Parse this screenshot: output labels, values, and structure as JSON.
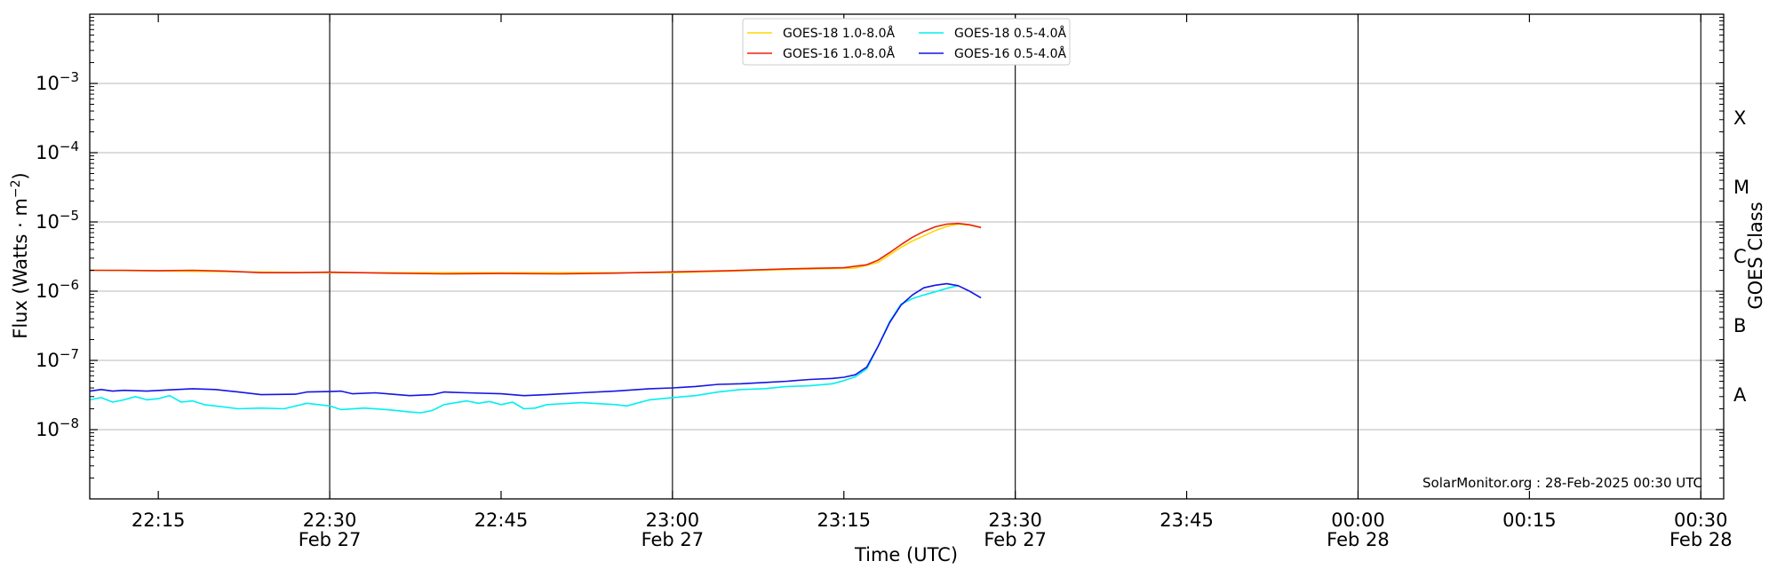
{
  "chart_data": {
    "type": "line",
    "xlabel": "Time (UTC)",
    "ylabel": "Flux (Watts · m",
    "ylabel_sup": "−2",
    "ylabel_close": ")",
    "right_label": "GOES Class",
    "credit": "SolarMonitor.org : 28-Feb-2025 00:30 UTC",
    "xlim": [
      "2025-02-27 22:09",
      "2025-02-28 00:32"
    ],
    "ylim": [
      1e-09,
      0.01
    ],
    "y_scale": "log",
    "grid": "horizontal",
    "legend_position": "top-center",
    "y_ticks": [
      {
        "value": 1e-08,
        "base": "10",
        "exp": "−8"
      },
      {
        "value": 1e-07,
        "base": "10",
        "exp": "−7"
      },
      {
        "value": 1e-06,
        "base": "10",
        "exp": "−6"
      },
      {
        "value": 1e-05,
        "base": "10",
        "exp": "−5"
      },
      {
        "value": 0.0001,
        "base": "10",
        "exp": "−4"
      },
      {
        "value": 0.001,
        "base": "10",
        "exp": "−3"
      }
    ],
    "x_ticks": [
      {
        "time": "2025-02-27 22:15",
        "label": "22:15",
        "date": ""
      },
      {
        "time": "2025-02-27 22:30",
        "label": "22:30",
        "date": "Feb 27"
      },
      {
        "time": "2025-02-27 22:45",
        "label": "22:45",
        "date": ""
      },
      {
        "time": "2025-02-27 23:00",
        "label": "23:00",
        "date": "Feb 27"
      },
      {
        "time": "2025-02-27 23:15",
        "label": "23:15",
        "date": ""
      },
      {
        "time": "2025-02-27 23:30",
        "label": "23:30",
        "date": "Feb 27"
      },
      {
        "time": "2025-02-27 23:45",
        "label": "23:45",
        "date": ""
      },
      {
        "time": "2025-02-28 00:00",
        "label": "00:00",
        "date": "Feb 28"
      },
      {
        "time": "2025-02-28 00:15",
        "label": "00:15",
        "date": ""
      },
      {
        "time": "2025-02-28 00:30",
        "label": "00:30",
        "date": "Feb 28"
      }
    ],
    "vertical_lines": [
      "2025-02-27 22:30",
      "2025-02-27 23:00",
      "2025-02-27 23:30",
      "2025-02-28 00:00",
      "2025-02-28 00:30"
    ],
    "goes_classes": [
      {
        "label": "A",
        "value": 3.16e-08
      },
      {
        "label": "B",
        "value": 3.16e-07
      },
      {
        "label": "C",
        "value": 3.16e-06
      },
      {
        "label": "M",
        "value": 3.16e-05
      },
      {
        "label": "X",
        "value": 0.000316
      }
    ],
    "series": [
      {
        "name": "GOES-18 1.0-8.0Å",
        "color": "#ffd700",
        "points": [
          [
            "2025-02-27 22:09",
            2e-06
          ],
          [
            "2025-02-27 22:30",
            1.85e-06
          ],
          [
            "2025-02-27 23:00",
            1.85e-06
          ],
          [
            "2025-02-27 23:10",
            2.05e-06
          ],
          [
            "2025-02-27 23:16",
            2.15e-06
          ],
          [
            "2025-02-27 23:18",
            2.6e-06
          ],
          [
            "2025-02-27 23:20",
            4.3e-06
          ],
          [
            "2025-02-27 23:21",
            5.3e-06
          ],
          [
            "2025-02-27 23:22",
            6.3e-06
          ],
          [
            "2025-02-27 23:23",
            7.5e-06
          ],
          [
            "2025-02-27 23:24",
            8.6e-06
          ],
          [
            "2025-02-27 23:25",
            9.3e-06
          ],
          [
            "2025-02-27 23:26",
            9e-06
          ],
          [
            "2025-02-27 23:27",
            8.3e-06
          ]
        ]
      },
      {
        "name": "GOES-16 1.0-8.0Å",
        "color": "#e8220e",
        "points": [
          [
            "2025-02-27 22:09",
            2e-06
          ],
          [
            "2025-02-27 22:12",
            2e-06
          ],
          [
            "2025-02-27 22:15",
            1.98e-06
          ],
          [
            "2025-02-27 22:18",
            2e-06
          ],
          [
            "2025-02-27 22:21",
            1.95e-06
          ],
          [
            "2025-02-27 22:24",
            1.85e-06
          ],
          [
            "2025-02-27 22:27",
            1.85e-06
          ],
          [
            "2025-02-27 22:30",
            1.88e-06
          ],
          [
            "2025-02-27 22:35",
            1.82e-06
          ],
          [
            "2025-02-27 22:40",
            1.78e-06
          ],
          [
            "2025-02-27 22:45",
            1.8e-06
          ],
          [
            "2025-02-27 22:50",
            1.78e-06
          ],
          [
            "2025-02-27 22:55",
            1.82e-06
          ],
          [
            "2025-02-27 23:00",
            1.9e-06
          ],
          [
            "2025-02-27 23:05",
            1.98e-06
          ],
          [
            "2025-02-27 23:10",
            2.1e-06
          ],
          [
            "2025-02-27 23:15",
            2.18e-06
          ],
          [
            "2025-02-27 23:17",
            2.4e-06
          ],
          [
            "2025-02-27 23:18",
            2.8e-06
          ],
          [
            "2025-02-27 23:19",
            3.6e-06
          ],
          [
            "2025-02-27 23:20",
            4.7e-06
          ],
          [
            "2025-02-27 23:21",
            6e-06
          ],
          [
            "2025-02-27 23:22",
            7.3e-06
          ],
          [
            "2025-02-27 23:23",
            8.5e-06
          ],
          [
            "2025-02-27 23:24",
            9.3e-06
          ],
          [
            "2025-02-27 23:25",
            9.5e-06
          ],
          [
            "2025-02-27 23:26",
            9.1e-06
          ],
          [
            "2025-02-27 23:27",
            8.3e-06
          ]
        ]
      },
      {
        "name": "GOES-18 0.5-4.0Å",
        "color": "#00f0f0",
        "points": [
          [
            "2025-02-27 22:09",
            2.7e-08
          ],
          [
            "2025-02-27 22:10",
            2.9e-08
          ],
          [
            "2025-02-27 22:11",
            2.5e-08
          ],
          [
            "2025-02-27 22:12",
            2.7e-08
          ],
          [
            "2025-02-27 22:13",
            3e-08
          ],
          [
            "2025-02-27 22:14",
            2.7e-08
          ],
          [
            "2025-02-27 22:15",
            2.8e-08
          ],
          [
            "2025-02-27 22:16",
            3.1e-08
          ],
          [
            "2025-02-27 22:17",
            2.5e-08
          ],
          [
            "2025-02-27 22:18",
            2.6e-08
          ],
          [
            "2025-02-27 22:19",
            2.3e-08
          ],
          [
            "2025-02-27 22:20",
            2.2e-08
          ],
          [
            "2025-02-27 22:22",
            2e-08
          ],
          [
            "2025-02-27 22:24",
            2.05e-08
          ],
          [
            "2025-02-27 22:26",
            2e-08
          ],
          [
            "2025-02-27 22:28",
            2.4e-08
          ],
          [
            "2025-02-27 22:30",
            2.2e-08
          ],
          [
            "2025-02-27 22:31",
            1.95e-08
          ],
          [
            "2025-02-27 22:33",
            2.05e-08
          ],
          [
            "2025-02-27 22:35",
            1.95e-08
          ],
          [
            "2025-02-27 22:37",
            1.8e-08
          ],
          [
            "2025-02-27 22:38",
            1.75e-08
          ],
          [
            "2025-02-27 22:39",
            1.9e-08
          ],
          [
            "2025-02-27 22:40",
            2.3e-08
          ],
          [
            "2025-02-27 22:42",
            2.6e-08
          ],
          [
            "2025-02-27 22:43",
            2.4e-08
          ],
          [
            "2025-02-27 22:44",
            2.55e-08
          ],
          [
            "2025-02-27 22:45",
            2.3e-08
          ],
          [
            "2025-02-27 22:46",
            2.5e-08
          ],
          [
            "2025-02-27 22:47",
            2e-08
          ],
          [
            "2025-02-27 22:48",
            2.05e-08
          ],
          [
            "2025-02-27 22:49",
            2.3e-08
          ],
          [
            "2025-02-27 22:52",
            2.45e-08
          ],
          [
            "2025-02-27 22:55",
            2.3e-08
          ],
          [
            "2025-02-27 22:56",
            2.2e-08
          ],
          [
            "2025-02-27 22:58",
            2.7e-08
          ],
          [
            "2025-02-27 23:00",
            2.9e-08
          ],
          [
            "2025-02-27 23:02",
            3.1e-08
          ],
          [
            "2025-02-27 23:04",
            3.5e-08
          ],
          [
            "2025-02-27 23:06",
            3.8e-08
          ],
          [
            "2025-02-27 23:08",
            3.9e-08
          ],
          [
            "2025-02-27 23:10",
            4.2e-08
          ],
          [
            "2025-02-27 23:12",
            4.3e-08
          ],
          [
            "2025-02-27 23:14",
            4.6e-08
          ],
          [
            "2025-02-27 23:15",
            5.1e-08
          ],
          [
            "2025-02-27 23:16",
            5.8e-08
          ],
          [
            "2025-02-27 23:17",
            7.5e-08
          ],
          [
            "2025-02-27 23:18",
            1.6e-07
          ],
          [
            "2025-02-27 23:19",
            3.6e-07
          ],
          [
            "2025-02-27 23:20",
            6.5e-07
          ],
          [
            "2025-02-27 23:21",
            7.8e-07
          ],
          [
            "2025-02-27 23:22",
            8.8e-07
          ],
          [
            "2025-02-27 23:23",
            9.8e-07
          ],
          [
            "2025-02-27 23:24",
            1.1e-06
          ],
          [
            "2025-02-27 23:25",
            1.2e-06
          ]
        ]
      },
      {
        "name": "GOES-16 0.5-4.0Å",
        "color": "#1414e8",
        "points": [
          [
            "2025-02-27 22:09",
            3.6e-08
          ],
          [
            "2025-02-27 22:10",
            3.8e-08
          ],
          [
            "2025-02-27 22:11",
            3.6e-08
          ],
          [
            "2025-02-27 22:12",
            3.7e-08
          ],
          [
            "2025-02-27 22:14",
            3.6e-08
          ],
          [
            "2025-02-27 22:16",
            3.75e-08
          ],
          [
            "2025-02-27 22:18",
            3.9e-08
          ],
          [
            "2025-02-27 22:20",
            3.8e-08
          ],
          [
            "2025-02-27 22:22",
            3.5e-08
          ],
          [
            "2025-02-27 22:24",
            3.2e-08
          ],
          [
            "2025-02-27 22:27",
            3.25e-08
          ],
          [
            "2025-02-27 22:28",
            3.5e-08
          ],
          [
            "2025-02-27 22:30",
            3.55e-08
          ],
          [
            "2025-02-27 22:31",
            3.6e-08
          ],
          [
            "2025-02-27 22:32",
            3.3e-08
          ],
          [
            "2025-02-27 22:34",
            3.4e-08
          ],
          [
            "2025-02-27 22:35",
            3.3e-08
          ],
          [
            "2025-02-27 22:37",
            3.1e-08
          ],
          [
            "2025-02-27 22:39",
            3.2e-08
          ],
          [
            "2025-02-27 22:40",
            3.5e-08
          ],
          [
            "2025-02-27 22:42",
            3.4e-08
          ],
          [
            "2025-02-27 22:45",
            3.3e-08
          ],
          [
            "2025-02-27 22:47",
            3.1e-08
          ],
          [
            "2025-02-27 22:49",
            3.2e-08
          ],
          [
            "2025-02-27 22:52",
            3.4e-08
          ],
          [
            "2025-02-27 22:55",
            3.6e-08
          ],
          [
            "2025-02-27 22:58",
            3.9e-08
          ],
          [
            "2025-02-27 23:00",
            4e-08
          ],
          [
            "2025-02-27 23:02",
            4.2e-08
          ],
          [
            "2025-02-27 23:04",
            4.5e-08
          ],
          [
            "2025-02-27 23:06",
            4.6e-08
          ],
          [
            "2025-02-27 23:08",
            4.8e-08
          ],
          [
            "2025-02-27 23:10",
            5e-08
          ],
          [
            "2025-02-27 23:12",
            5.3e-08
          ],
          [
            "2025-02-27 23:14",
            5.5e-08
          ],
          [
            "2025-02-27 23:15",
            5.7e-08
          ],
          [
            "2025-02-27 23:16",
            6.2e-08
          ],
          [
            "2025-02-27 23:17",
            8e-08
          ],
          [
            "2025-02-27 23:18",
            1.6e-07
          ],
          [
            "2025-02-27 23:19",
            3.5e-07
          ],
          [
            "2025-02-27 23:20",
            6.3e-07
          ],
          [
            "2025-02-27 23:21",
            8.8e-07
          ],
          [
            "2025-02-27 23:22",
            1.12e-06
          ],
          [
            "2025-02-27 23:23",
            1.22e-06
          ],
          [
            "2025-02-27 23:24",
            1.28e-06
          ],
          [
            "2025-02-27 23:25",
            1.2e-06
          ],
          [
            "2025-02-27 23:26",
            1e-06
          ],
          [
            "2025-02-27 23:27",
            8e-07
          ]
        ]
      }
    ]
  }
}
